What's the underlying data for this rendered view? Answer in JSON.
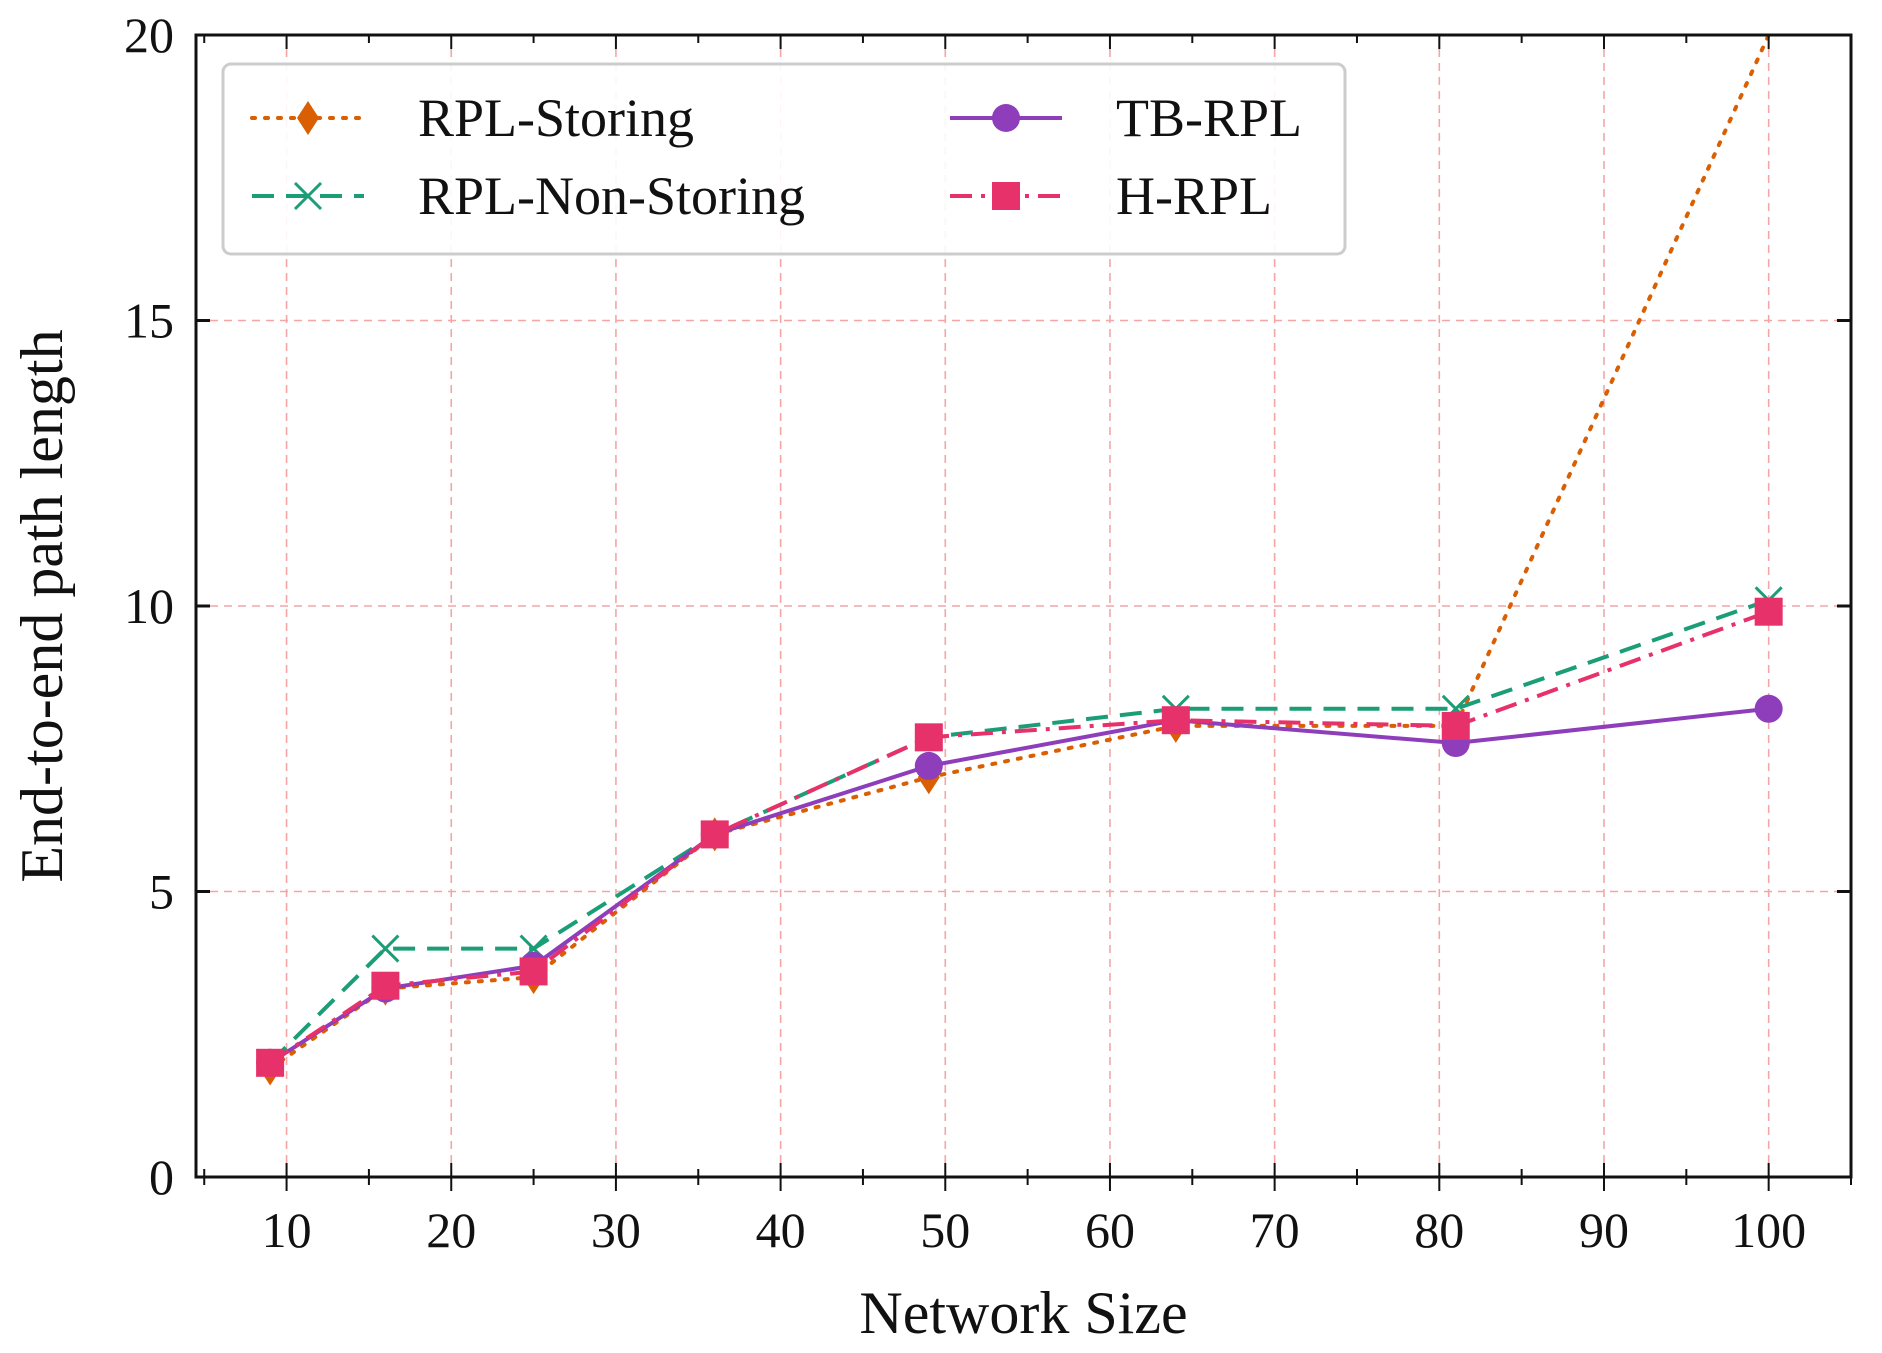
{
  "chart_data": {
    "type": "line",
    "title": "",
    "xlabel": "Network Size",
    "ylabel": "End-to-end path length",
    "xlim": [
      4.5,
      105
    ],
    "ylim": [
      0,
      20
    ],
    "xticks": [
      10,
      20,
      30,
      40,
      50,
      60,
      70,
      80,
      90,
      100
    ],
    "yticks": [
      0,
      5,
      10,
      15,
      20
    ],
    "x": [
      9,
      16,
      25,
      36,
      49,
      64,
      81,
      100
    ],
    "grid": true,
    "legend_position": "top-left",
    "series": [
      {
        "name": "RPL-Storing",
        "values": [
          1.9,
          3.3,
          3.5,
          6.0,
          7.0,
          7.9,
          7.9,
          20.0
        ],
        "color": "#d95f02",
        "dash": "dotted",
        "marker": "diamond"
      },
      {
        "name": "RPL-Non-Storing",
        "values": [
          2.0,
          4.0,
          4.0,
          6.0,
          7.7,
          8.2,
          8.2,
          10.1
        ],
        "color": "#1b9e77",
        "dash": "dashed",
        "marker": "x"
      },
      {
        "name": "TB-RPL",
        "values": [
          2.0,
          3.3,
          3.7,
          6.0,
          7.2,
          8.0,
          7.6,
          8.2
        ],
        "color": "#8e3dbb",
        "dash": "solid",
        "marker": "circle"
      },
      {
        "name": "H-RPL",
        "values": [
          2.0,
          3.35,
          3.6,
          6.0,
          7.7,
          8.0,
          7.9,
          9.9
        ],
        "color": "#e7316b",
        "dash": "dashdot",
        "marker": "square"
      }
    ]
  }
}
